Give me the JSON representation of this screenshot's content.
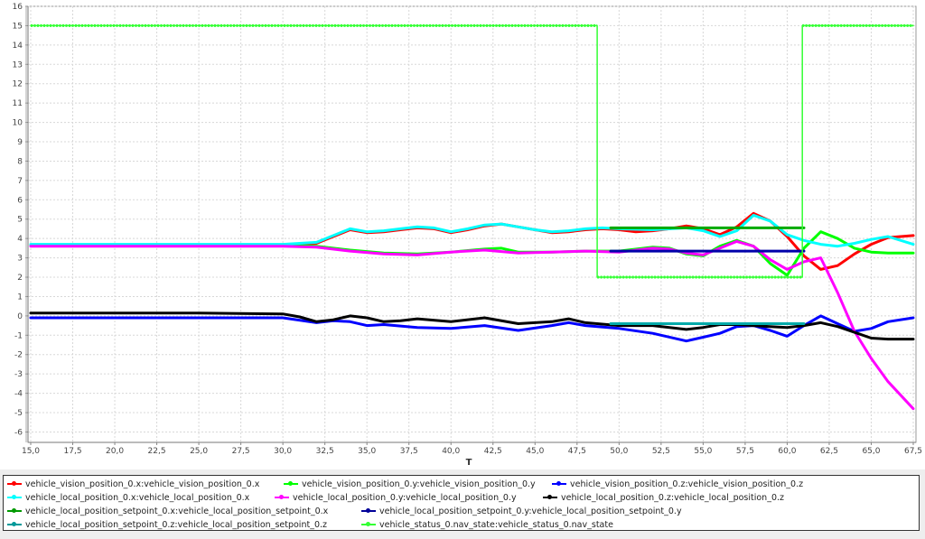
{
  "chart_data": {
    "type": "line",
    "title": "",
    "xlabel": "T",
    "ylabel": "",
    "xlim": [
      15.0,
      67.5
    ],
    "ylim": [
      -7,
      16
    ],
    "grid": true,
    "legend_position": "bottom",
    "x_ticks": [
      "15,0",
      "17,5",
      "20,0",
      "22,5",
      "25,0",
      "27,5",
      "30,0",
      "32,5",
      "35,0",
      "37,5",
      "40,0",
      "42,5",
      "45,0",
      "47,5",
      "50,0",
      "52,5",
      "55,0",
      "57,5",
      "60,0",
      "62,5",
      "65,0",
      "67,5"
    ],
    "y_ticks": [
      "16",
      "15",
      "14",
      "13",
      "12",
      "11",
      "10",
      "9",
      "8",
      "7",
      "6",
      "5",
      "4",
      "3",
      "2",
      "1",
      "0",
      "-1",
      "-2",
      "-3",
      "-4",
      "-5",
      "-6"
    ],
    "series": [
      {
        "name": "vehicle_vision_position_0.x:vehicle_vision_position_0.x",
        "color": "#ff0000",
        "x": [
          15,
          20,
          25,
          30,
          32,
          33,
          34,
          35,
          36,
          37,
          38,
          39,
          40,
          41,
          42,
          43,
          44,
          45,
          46,
          47,
          48,
          49,
          50,
          51,
          52,
          53,
          54,
          55,
          56,
          57,
          58,
          59,
          60,
          61,
          62,
          63,
          64,
          65,
          66,
          67.5
        ],
        "y": [
          3.65,
          3.65,
          3.65,
          3.65,
          3.75,
          4.1,
          4.45,
          4.3,
          4.35,
          4.45,
          4.55,
          4.5,
          4.3,
          4.45,
          4.65,
          4.75,
          4.6,
          4.45,
          4.3,
          4.35,
          4.45,
          4.5,
          4.45,
          4.35,
          4.4,
          4.5,
          4.65,
          4.5,
          4.2,
          4.6,
          5.3,
          4.9,
          4.1,
          3.1,
          2.4,
          2.6,
          3.2,
          3.7,
          4.05,
          4.15
        ]
      },
      {
        "name": "vehicle_vision_position_0.y:vehicle_vision_position_0.y",
        "color": "#00ff00",
        "x": [
          15,
          20,
          25,
          30,
          32,
          34,
          36,
          38,
          40,
          42,
          43,
          44,
          46,
          48,
          50,
          52,
          53,
          54,
          55,
          56,
          57,
          58,
          59,
          60,
          61,
          62,
          63,
          64,
          65,
          66,
          67.5
        ],
        "y": [
          3.65,
          3.65,
          3.65,
          3.65,
          3.6,
          3.4,
          3.25,
          3.2,
          3.3,
          3.45,
          3.5,
          3.3,
          3.3,
          3.35,
          3.35,
          3.55,
          3.5,
          3.2,
          3.1,
          3.6,
          3.9,
          3.6,
          2.7,
          2.1,
          3.5,
          4.35,
          4.0,
          3.5,
          3.3,
          3.25,
          3.25
        ]
      },
      {
        "name": "vehicle_vision_position_0.z:vehicle_vision_position_0.z",
        "color": "#0000ff",
        "x": [
          15,
          20,
          25,
          30,
          32,
          33,
          34,
          35,
          36,
          38,
          40,
          42,
          44,
          46,
          47,
          48,
          50,
          52,
          54,
          55,
          56,
          57,
          58,
          59,
          60,
          61,
          62,
          63,
          64,
          65,
          66,
          67.5
        ],
        "y": [
          -0.1,
          -0.1,
          -0.1,
          -0.1,
          -0.35,
          -0.25,
          -0.3,
          -0.5,
          -0.45,
          -0.6,
          -0.65,
          -0.5,
          -0.75,
          -0.5,
          -0.35,
          -0.5,
          -0.65,
          -0.9,
          -1.3,
          -1.1,
          -0.9,
          -0.55,
          -0.5,
          -0.75,
          -1.05,
          -0.5,
          0.0,
          -0.4,
          -0.8,
          -0.65,
          -0.3,
          -0.1
        ]
      },
      {
        "name": "vehicle_local_position_0.x:vehicle_local_position_0.x",
        "color": "#00ffff",
        "x": [
          15,
          20,
          25,
          30,
          32,
          33,
          34,
          35,
          36,
          37,
          38,
          39,
          40,
          41,
          42,
          43,
          44,
          45,
          46,
          47,
          48,
          49,
          50,
          52,
          54,
          55,
          56,
          57,
          58,
          59,
          60,
          61,
          62,
          63,
          64,
          65,
          66,
          67.5
        ],
        "y": [
          3.7,
          3.7,
          3.7,
          3.7,
          3.8,
          4.15,
          4.5,
          4.35,
          4.4,
          4.5,
          4.6,
          4.55,
          4.35,
          4.5,
          4.7,
          4.75,
          4.6,
          4.45,
          4.35,
          4.4,
          4.5,
          4.55,
          4.5,
          4.45,
          4.55,
          4.4,
          4.1,
          4.4,
          5.2,
          4.9,
          4.2,
          3.9,
          3.7,
          3.6,
          3.75,
          3.95,
          4.1,
          3.7
        ]
      },
      {
        "name": "vehicle_local_position_0.y:vehicle_local_position_0.y",
        "color": "#ff00ff",
        "x": [
          15,
          20,
          25,
          30,
          32,
          34,
          36,
          38,
          40,
          42,
          44,
          46,
          48,
          50,
          52,
          53,
          54,
          55,
          56,
          57,
          58,
          59,
          60,
          61,
          62,
          63,
          64,
          65,
          66,
          67.5
        ],
        "y": [
          3.6,
          3.6,
          3.6,
          3.6,
          3.55,
          3.35,
          3.2,
          3.15,
          3.3,
          3.4,
          3.25,
          3.3,
          3.35,
          3.3,
          3.5,
          3.45,
          3.25,
          3.15,
          3.5,
          3.85,
          3.6,
          2.9,
          2.4,
          2.8,
          3.0,
          1.2,
          -0.8,
          -2.2,
          -3.4,
          -4.8
        ]
      },
      {
        "name": "vehicle_local_position_0.z:vehicle_local_position_0.z",
        "color": "#000000",
        "x": [
          15,
          20,
          25,
          30,
          31,
          32,
          33,
          34,
          35,
          36,
          37,
          38,
          40,
          42,
          44,
          46,
          47,
          48,
          50,
          52,
          54,
          55,
          56,
          57,
          58,
          59,
          60,
          61,
          62,
          63,
          64,
          65,
          66,
          67.5
        ],
        "y": [
          0.15,
          0.15,
          0.15,
          0.1,
          -0.05,
          -0.3,
          -0.2,
          0.0,
          -0.1,
          -0.3,
          -0.25,
          -0.15,
          -0.3,
          -0.1,
          -0.4,
          -0.3,
          -0.15,
          -0.35,
          -0.5,
          -0.5,
          -0.7,
          -0.6,
          -0.45,
          -0.45,
          -0.5,
          -0.55,
          -0.6,
          -0.5,
          -0.35,
          -0.55,
          -0.85,
          -1.15,
          -1.2,
          -1.2
        ]
      },
      {
        "name": "vehicle_local_position_setpoint_0.x:vehicle_local_position_setpoint_0.x",
        "color": "#00aa00",
        "x": [
          49.5,
          61
        ],
        "y": [
          4.55,
          4.55
        ]
      },
      {
        "name": "vehicle_local_position_setpoint_0.y:vehicle_local_position_setpoint_0.y",
        "color": "#0000aa",
        "x": [
          49.5,
          61
        ],
        "y": [
          3.35,
          3.35
        ]
      },
      {
        "name": "vehicle_local_position_setpoint_0.z:vehicle_local_position_setpoint_0.z",
        "color": "#00aaaa",
        "x": [
          49.5,
          61
        ],
        "y": [
          -0.4,
          -0.4
        ]
      },
      {
        "name": "vehicle_status_0.nav_state:vehicle_status_0.nav_state",
        "color": "#33ff33",
        "x": [
          15,
          48.7,
          48.7,
          60.9,
          60.9,
          67.5
        ],
        "y": [
          15,
          15,
          2,
          2,
          15,
          15
        ]
      }
    ]
  },
  "legend": {
    "items": [
      {
        "label": "vehicle_vision_position_0.x:vehicle_vision_position_0.x",
        "color": "#ff0000"
      },
      {
        "label": "vehicle_vision_position_0.y:vehicle_vision_position_0.y",
        "color": "#00ff00"
      },
      {
        "label": "vehicle_vision_position_0.z:vehicle_vision_position_0.z",
        "color": "#0000ff"
      },
      {
        "label": "vehicle_local_position_0.x:vehicle_local_position_0.x",
        "color": "#00ffff"
      },
      {
        "label": "vehicle_local_position_0.y:vehicle_local_position_0.y",
        "color": "#ff00ff"
      },
      {
        "label": "vehicle_local_position_0.z:vehicle_local_position_0.z",
        "color": "#000000"
      },
      {
        "label": "vehicle_local_position_setpoint_0.x:vehicle_local_position_setpoint_0.x",
        "color": "#009900"
      },
      {
        "label": "vehicle_local_position_setpoint_0.y:vehicle_local_position_setpoint_0.y",
        "color": "#000099"
      },
      {
        "label": "vehicle_local_position_setpoint_0.z:vehicle_local_position_setpoint_0.z",
        "color": "#009999"
      },
      {
        "label": "vehicle_status_0.nav_state:vehicle_status_0.nav_state",
        "color": "#33ff33"
      }
    ]
  }
}
